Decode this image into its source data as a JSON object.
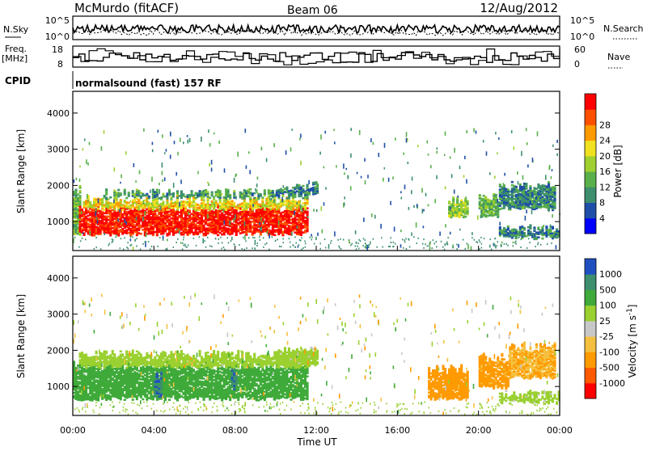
{
  "header": {
    "station": "McMurdo (fitACF)",
    "beam": "Beam 06",
    "date": "12/Aug/2012"
  },
  "top_panels": {
    "nsky_label": "N.Sky",
    "nsearch_label": "N.Search",
    "noise_ticks": [
      "10^5",
      "10^0"
    ],
    "freq_label_1": "Freq.",
    "freq_label_2": "[MHz]",
    "freq_ticks": [
      "18",
      "8"
    ],
    "nave_label": "Nave",
    "nave_ticks": [
      "60",
      "0"
    ],
    "cpid_label": "CPID",
    "cpid_text": "normalsound (fast) 157 RF"
  },
  "x_axis": {
    "label": "Time UT",
    "ticks": [
      "00:00",
      "04:00",
      "08:00",
      "12:00",
      "16:00",
      "20:00",
      "00:00"
    ],
    "range_hours": [
      0,
      24
    ]
  },
  "colors": {
    "power": [
      "#0000ff",
      "#1f4fa8",
      "#3d8f6e",
      "#5ab04a",
      "#9fd030",
      "#f0e020",
      "#ff9a00",
      "#ff5000",
      "#ff0000"
    ],
    "velocity": [
      "#ff0000",
      "#ff5a00",
      "#ff9a00",
      "#f5c040",
      "#c8c8c8",
      "#9ad030",
      "#3faa3a",
      "#3d8f6e",
      "#2050c0"
    ]
  },
  "chart_data": [
    {
      "type": "heatmap",
      "panel": "power",
      "xlabel": "",
      "ylabel": "Slant Range [km]",
      "yticks": [
        "1000",
        "2000",
        "3000",
        "4000"
      ],
      "ylim": [
        200,
        4600
      ],
      "xlim": [
        0,
        24
      ],
      "colorbar_label": "Power [dB]",
      "colorbar_ticks": [
        "4",
        "8",
        "12",
        "16",
        "20",
        "24",
        "28"
      ],
      "regions": [
        {
          "t0": 0.0,
          "t1": 0.4,
          "r0": 600,
          "r1": 2000,
          "value": 12
        },
        {
          "t0": 0.3,
          "t1": 11.5,
          "r0": 600,
          "r1": 1500,
          "value": 28
        },
        {
          "t0": 0.5,
          "t1": 11.5,
          "r0": 1300,
          "r1": 1700,
          "value": 18
        },
        {
          "t0": 1.5,
          "t1": 11.5,
          "r0": 1600,
          "r1": 1900,
          "value": 10
        },
        {
          "t0": 10.0,
          "t1": 12.0,
          "r0": 1700,
          "r1": 2100,
          "value": 8
        },
        {
          "t0": 18.5,
          "t1": 19.5,
          "r0": 1100,
          "r1": 1700,
          "value": 14
        },
        {
          "t0": 20.0,
          "t1": 21.0,
          "r0": 1100,
          "r1": 1800,
          "value": 12
        },
        {
          "t0": 21.0,
          "t1": 23.8,
          "r0": 1300,
          "r1": 2100,
          "value": 8
        },
        {
          "t0": 21.0,
          "t1": 24.0,
          "r0": 500,
          "r1": 900,
          "value": 8
        }
      ]
    },
    {
      "type": "heatmap",
      "panel": "velocity",
      "xlabel": "Time UT",
      "ylabel": "Slant Range [km]",
      "yticks": [
        "1000",
        "2000",
        "3000",
        "4000"
      ],
      "ylim": [
        200,
        4600
      ],
      "xlim": [
        0,
        24
      ],
      "colorbar_label": "Velocity [m s^-1]",
      "colorbar_ticks": [
        "1000",
        "500",
        "100",
        "25",
        "-25",
        "-100",
        "-500",
        "-1000"
      ],
      "regions": [
        {
          "t0": 0.0,
          "t1": 11.5,
          "r0": 600,
          "r1": 1700,
          "value": 200
        },
        {
          "t0": 0.3,
          "t1": 11.5,
          "r0": 1500,
          "r1": 2000,
          "value": 50
        },
        {
          "t0": 4.0,
          "t1": 4.3,
          "r0": 700,
          "r1": 1500,
          "value": 900
        },
        {
          "t0": 7.8,
          "t1": 8.1,
          "r0": 900,
          "r1": 1600,
          "value": 900
        },
        {
          "t0": 10.0,
          "t1": 12.0,
          "r0": 1500,
          "r1": 2100,
          "value": 40
        },
        {
          "t0": 17.5,
          "t1": 19.5,
          "r0": 600,
          "r1": 1600,
          "value": -300
        },
        {
          "t0": 20.0,
          "t1": 21.5,
          "r0": 900,
          "r1": 1900,
          "value": -150
        },
        {
          "t0": 21.5,
          "t1": 23.8,
          "r0": 1200,
          "r1": 2200,
          "value": -100
        },
        {
          "t0": 21.0,
          "t1": 24.0,
          "r0": 500,
          "r1": 900,
          "value": 40
        }
      ]
    }
  ]
}
